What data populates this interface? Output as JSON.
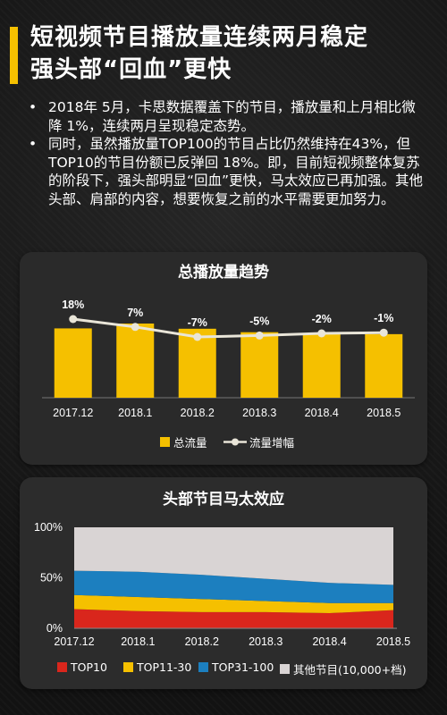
{
  "header": {
    "title_line1": "短视频节目播放量连续两月稳定",
    "title_line2": "强头部“回血”更快"
  },
  "bullets": [
    "2018年 5月，卡思数据覆盖下的节目，播放量和上月相比微降 1%，连续两月呈现稳定态势。",
    "同时，虽然播放量TOP100的节目占比仍然维持在43%，但TOP10的节目份额已反弹回 18%。即，目前短视频整体复苏的阶段下，强头部明显“回血”更快，马太效应已再加强。其他头部、肩部的内容，想要恢复之前的水平需要更加努力。"
  ],
  "colors": {
    "accent": "#f5c000",
    "line": "#e9e5d8",
    "top10": "#d9261c",
    "top11_30": "#f5c000",
    "top31_100": "#1c7fbf",
    "others": "#d9d4d4"
  },
  "chart_data": [
    {
      "type": "bar",
      "title": "总播放量趋势",
      "categories": [
        "2017.12",
        "2018.1",
        "2018.2",
        "2018.3",
        "2018.4",
        "2018.5"
      ],
      "series": [
        {
          "name": "总流量",
          "values": [
            100,
            107,
            99.5,
            94.5,
            92.6,
            91.7
          ]
        },
        {
          "name": "流量增幅",
          "type": "line",
          "values": [
            18,
            7,
            -7,
            -5,
            -2,
            -1
          ],
          "labels": [
            "18%",
            "7%",
            "-7%",
            "-5%",
            "-2%",
            "-1%"
          ]
        }
      ],
      "legend": "bottom"
    },
    {
      "type": "area",
      "stacked": true,
      "title": "头部节目马太效应",
      "categories": [
        "2017.12",
        "2018.1",
        "2018.2",
        "2018.3",
        "2018.4",
        "2018.5"
      ],
      "ylim": [
        0,
        100
      ],
      "yticks": [
        "0%",
        "50%",
        "100%"
      ],
      "series": [
        {
          "name": "TOP10",
          "values": [
            19,
            17,
            16,
            16,
            15,
            18
          ]
        },
        {
          "name": "TOP11-30",
          "values": [
            14,
            14,
            13,
            11,
            10,
            7
          ]
        },
        {
          "name": "TOP31-100",
          "values": [
            24,
            25,
            24,
            22,
            20,
            18
          ]
        },
        {
          "name": "其他节目(10,000+档)",
          "values": [
            43,
            44,
            47,
            51,
            55,
            57
          ]
        }
      ],
      "legend": "bottom"
    }
  ]
}
